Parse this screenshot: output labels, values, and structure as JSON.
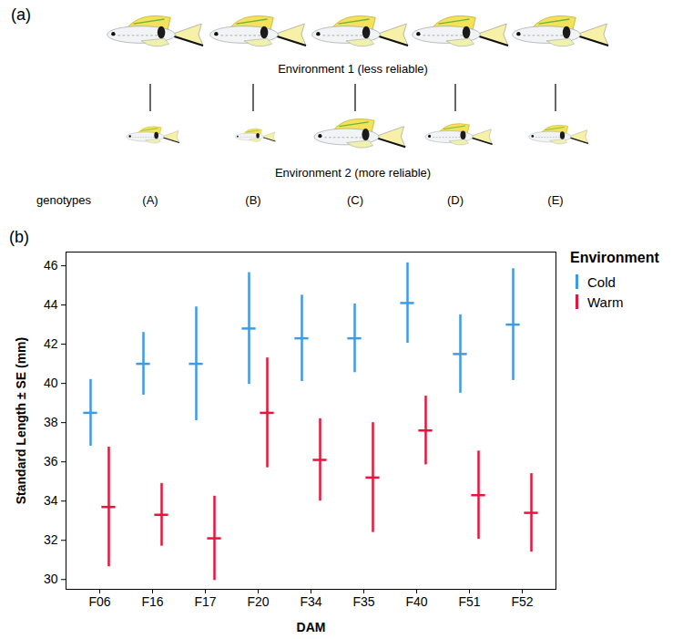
{
  "panel_a": {
    "panel_label": "(a)",
    "environment_1": "Environment 1 (less reliable)",
    "environment_2": "Environment 2 (more reliable)",
    "genotypes_title": "genotypes",
    "genotypes": [
      "(A)",
      "(B)",
      "(C)",
      "(D)",
      "(E)"
    ],
    "environment_2_relative_size": [
      0.55,
      0.42,
      0.95,
      0.7,
      0.62
    ]
  },
  "chart_data": {
    "type": "errorbar",
    "panel_label": "(b)",
    "x_label": "DAM",
    "y_label": "Standard Length ± SE (mm)",
    "categories": [
      "F06",
      "F16",
      "F17",
      "F20",
      "F34",
      "F35",
      "F40",
      "F51",
      "F52"
    ],
    "series": [
      {
        "name": "Cold",
        "color": "#3d9be6",
        "values": [
          38.5,
          41.0,
          41.0,
          42.8,
          42.3,
          42.3,
          44.1,
          41.5,
          43.0
        ],
        "se": [
          1.7,
          1.6,
          2.9,
          2.85,
          2.2,
          1.75,
          2.05,
          2.0,
          2.85
        ]
      },
      {
        "name": "Warm",
        "color": "#e8143c",
        "values": [
          33.7,
          33.3,
          32.1,
          38.5,
          36.1,
          35.2,
          37.6,
          34.3,
          33.4
        ],
        "se": [
          3.05,
          1.6,
          2.15,
          2.8,
          2.1,
          2.8,
          1.75,
          2.25,
          2.0
        ]
      }
    ],
    "ylim": [
      29.5,
      46.7
    ],
    "yticks": [
      30,
      32,
      34,
      36,
      38,
      40,
      42,
      44,
      46
    ],
    "legend": "right",
    "legend_title": "Environment"
  }
}
